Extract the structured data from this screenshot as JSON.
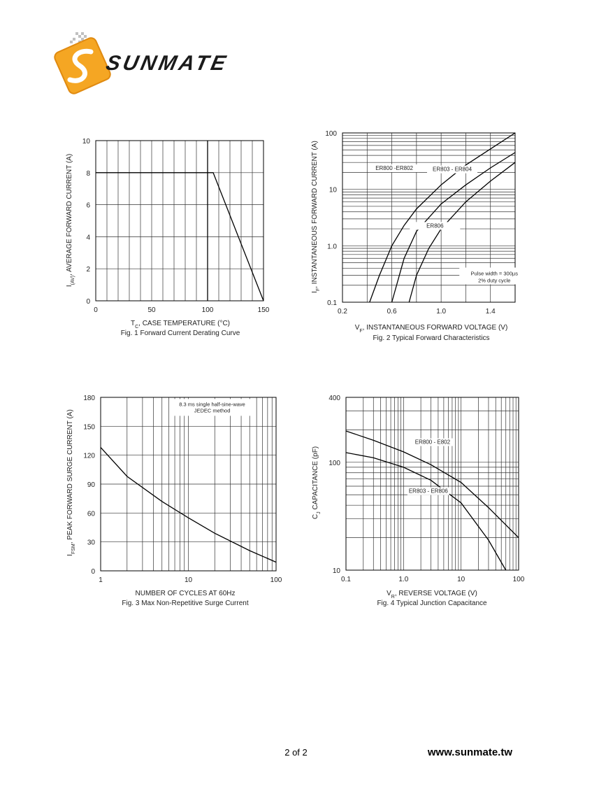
{
  "brand": {
    "name": "SUNMATE",
    "accent": "#f5a623",
    "mark_color": "#ffffff"
  },
  "footer": {
    "page": "2 of 2",
    "url": "www.sunmate.tw"
  },
  "chart_data": [
    {
      "id": "fig1",
      "type": "line",
      "caption": "Fig. 1  Forward Current Derating Curve",
      "xlabel_main": "T",
      "xlabel_sub": "C",
      "xlabel_rest": ", CASE TEMPERATURE (°C)",
      "ylabel_main": "I",
      "ylabel_sub": "(AV)",
      "ylabel_rest": ", AVERAGE FORWARD CURRENT (A)",
      "xlim": [
        0,
        150
      ],
      "ylim": [
        0,
        10
      ],
      "xticks": [
        0,
        50,
        100,
        150
      ],
      "yticks": [
        0,
        2,
        4,
        6,
        8,
        10
      ],
      "grid": true,
      "series": [
        {
          "x": [
            0,
            105,
            150
          ],
          "y": [
            8,
            8,
            0
          ]
        }
      ]
    },
    {
      "id": "fig2",
      "type": "line",
      "scale_y": "log",
      "caption": "Fig. 2  Typical Forward Characteristics",
      "xlabel_main": "V",
      "xlabel_sub": "F",
      "xlabel_rest": ", INSTANTANEOUS FORWARD VOLTAGE (V)",
      "ylabel_main": "I",
      "ylabel_sub": "F",
      "ylabel_rest": ", INSTANTANEOUS FORWARD CURRENT (A)",
      "xlim": [
        0.2,
        1.6
      ],
      "ylim": [
        0.1,
        100
      ],
      "xticks": [
        0.2,
        0.6,
        1.0,
        1.4
      ],
      "xtick_labels": [
        "0.2",
        "0.6",
        "1.0",
        "1.4"
      ],
      "yticks": [
        0.1,
        1,
        10,
        100
      ],
      "ytick_labels": [
        "0.1",
        "1.0",
        "10",
        "100"
      ],
      "grid": true,
      "note": [
        "Pulse width = 300µs",
        "2% duty cycle"
      ],
      "series": [
        {
          "name": "ER800 -ER802",
          "x": [
            0.42,
            0.5,
            0.6,
            0.7,
            0.8,
            1.0,
            1.2,
            1.4,
            1.6
          ],
          "y": [
            0.1,
            0.3,
            1.0,
            2.3,
            4.5,
            12,
            27,
            52,
            100
          ]
        },
        {
          "name": "ER803 - ER804",
          "x": [
            0.6,
            0.7,
            0.8,
            1.0,
            1.2,
            1.4,
            1.6
          ],
          "y": [
            0.1,
            0.6,
            1.8,
            5.5,
            12,
            24,
            45
          ]
        },
        {
          "name": "ER806",
          "x": [
            0.74,
            0.8,
            0.9,
            1.0,
            1.2,
            1.4,
            1.6
          ],
          "y": [
            0.1,
            0.3,
            0.9,
            2.0,
            6,
            14,
            30
          ]
        }
      ]
    },
    {
      "id": "fig3",
      "type": "line",
      "scale_x": "log",
      "caption": "Fig. 3  Max Non-Repetitive Surge Current",
      "xlabel_main": "NUMBER OF CYCLES AT 60Hz",
      "xlabel_sub": "",
      "xlabel_rest": "",
      "ylabel_main": "I",
      "ylabel_sub": "FSM",
      "ylabel_rest": ", PEAK FORWARD SURGE CURRENT (A)",
      "xlim": [
        1,
        100
      ],
      "ylim": [
        0,
        180
      ],
      "xticks": [
        1,
        10,
        100
      ],
      "xtick_labels": [
        "1",
        "10",
        "100"
      ],
      "yticks": [
        0,
        30,
        60,
        90,
        120,
        150,
        180
      ],
      "grid": true,
      "note": [
        "8.3 ms single half-sine-wave",
        "JEDEC method"
      ],
      "series": [
        {
          "x": [
            1,
            2,
            5,
            10,
            20,
            50,
            100
          ],
          "y": [
            128,
            98,
            72,
            55,
            39,
            21,
            9
          ]
        }
      ]
    },
    {
      "id": "fig4",
      "type": "line",
      "scale_x": "log",
      "scale_y": "log",
      "caption": "Fig. 4  Typical Junction Capacitance",
      "xlabel_main": "V",
      "xlabel_sub": "R",
      "xlabel_rest": ", REVERSE VOLTAGE (V)",
      "ylabel_main": "C",
      "ylabel_sub": "J",
      "ylabel_rest": " CAPACITANCE (pF)",
      "xlim": [
        0.1,
        100
      ],
      "ylim": [
        10,
        400
      ],
      "xticks": [
        0.1,
        1,
        10,
        100
      ],
      "xtick_labels": [
        "0.1",
        "1.0",
        "10",
        "100"
      ],
      "yticks": [
        10,
        100,
        400
      ],
      "ytick_labels": [
        "10",
        "100",
        "400"
      ],
      "grid": true,
      "series": [
        {
          "name": "ER800 - E802",
          "x": [
            0.1,
            0.3,
            1,
            3,
            10,
            30,
            100
          ],
          "y": [
            195,
            160,
            125,
            95,
            65,
            38,
            20
          ]
        },
        {
          "name": "ER803 - ER806",
          "x": [
            0.1,
            0.3,
            1,
            3,
            10,
            30,
            60
          ],
          "y": [
            123,
            110,
            90,
            68,
            42,
            19,
            10
          ]
        }
      ]
    }
  ]
}
